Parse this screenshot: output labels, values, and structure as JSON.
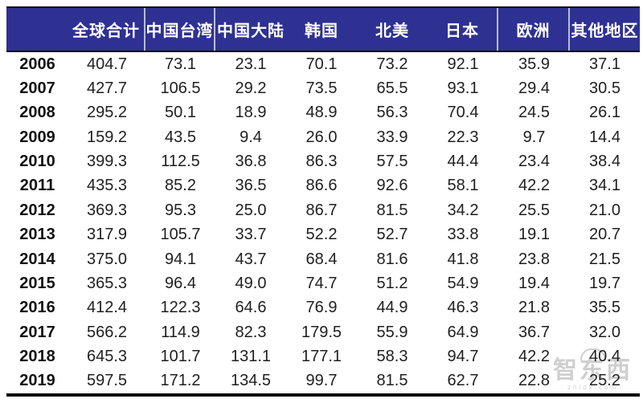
{
  "chart_data": {
    "type": "table",
    "columns": [
      "全球合计",
      "中国台湾",
      "中国大陆",
      "韩国",
      "北美",
      "日本",
      "欧洲",
      "其他地区"
    ],
    "rows": [
      {
        "year": "2006",
        "values": [
          "404.7",
          "73.1",
          "23.1",
          "70.1",
          "73.2",
          "92.1",
          "35.9",
          "37.1"
        ]
      },
      {
        "year": "2007",
        "values": [
          "427.7",
          "106.5",
          "29.2",
          "73.5",
          "65.5",
          "93.1",
          "29.4",
          "30.5"
        ]
      },
      {
        "year": "2008",
        "values": [
          "295.2",
          "50.1",
          "18.9",
          "48.9",
          "56.3",
          "70.4",
          "24.5",
          "26.1"
        ]
      },
      {
        "year": "2009",
        "values": [
          "159.2",
          "43.5",
          "9.4",
          "26.0",
          "33.9",
          "22.3",
          "9.7",
          "14.4"
        ]
      },
      {
        "year": "2010",
        "values": [
          "399.3",
          "112.5",
          "36.8",
          "86.3",
          "57.5",
          "44.4",
          "23.4",
          "38.4"
        ]
      },
      {
        "year": "2011",
        "values": [
          "435.3",
          "85.2",
          "36.5",
          "86.6",
          "92.6",
          "58.1",
          "42.2",
          "34.1"
        ]
      },
      {
        "year": "2012",
        "values": [
          "369.3",
          "95.3",
          "25.0",
          "86.7",
          "81.5",
          "34.2",
          "25.5",
          "21.0"
        ]
      },
      {
        "year": "2013",
        "values": [
          "317.9",
          "105.7",
          "33.7",
          "52.2",
          "52.7",
          "33.8",
          "19.1",
          "20.7"
        ]
      },
      {
        "year": "2014",
        "values": [
          "375.0",
          "94.1",
          "43.7",
          "68.4",
          "81.6",
          "41.8",
          "23.8",
          "21.5"
        ]
      },
      {
        "year": "2015",
        "values": [
          "365.3",
          "96.4",
          "49.0",
          "74.7",
          "51.2",
          "54.9",
          "19.4",
          "19.7"
        ]
      },
      {
        "year": "2016",
        "values": [
          "412.4",
          "122.3",
          "64.6",
          "76.9",
          "44.9",
          "46.3",
          "21.8",
          "35.5"
        ]
      },
      {
        "year": "2017",
        "values": [
          "566.2",
          "114.9",
          "82.3",
          "179.5",
          "55.9",
          "64.9",
          "36.7",
          "32.0"
        ]
      },
      {
        "year": "2018",
        "values": [
          "645.3",
          "101.7",
          "131.1",
          "177.1",
          "58.3",
          "94.7",
          "42.2",
          "40.4"
        ]
      },
      {
        "year": "2019",
        "values": [
          "597.5",
          "171.2",
          "134.5",
          "99.7",
          "81.5",
          "62.7",
          "22.8",
          "25.2"
        ]
      }
    ],
    "layout": {
      "separator_after_columns": [
        0,
        1,
        5,
        6
      ],
      "grid": "off",
      "row_header": ""
    }
  },
  "watermark": {
    "text": "智东西",
    "subtext": "zhidx.com"
  },
  "colors": {
    "header_bg": "#2e3192",
    "header_text": "#ffffff",
    "separator": "#b9bcd9",
    "body_text": "#1f1f1f",
    "border": "#0a0a0a",
    "watermark": "#c7c7c7"
  }
}
